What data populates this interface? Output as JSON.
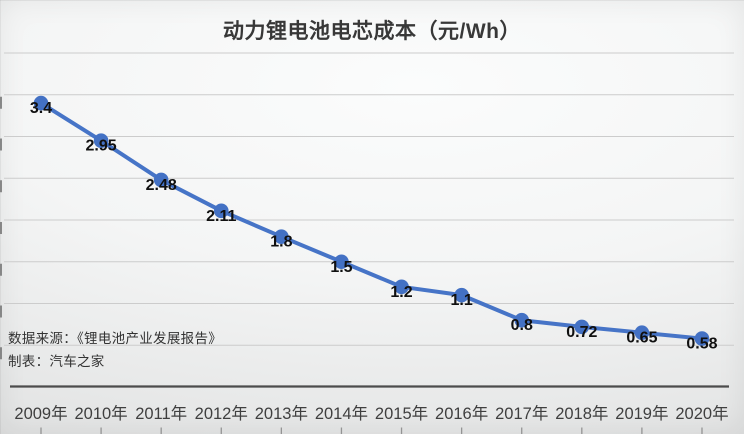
{
  "title": "动力锂电池电芯成本（元/Wh）",
  "source": {
    "line1": "数据来源：《锂电池产业发展报告》",
    "line2": "制表：汽车之家"
  },
  "chart_data": {
    "type": "line",
    "title": "动力锂电池电芯成本（元/Wh）",
    "categories": [
      "2009年",
      "2010年",
      "2011年",
      "2012年",
      "2013年",
      "2014年",
      "2015年",
      "2016年",
      "2017年",
      "2018年",
      "2019年",
      "2020年"
    ],
    "values": [
      3.4,
      2.95,
      2.48,
      2.11,
      1.8,
      1.5,
      1.2,
      1.1,
      0.8,
      0.72,
      0.65,
      0.58
    ],
    "labels": [
      "3.4",
      "2.95",
      "2.48",
      "2.11",
      "1.8",
      "1.5",
      "1.2",
      "1.1",
      "0.8",
      "0.72",
      "0.65",
      "0.58"
    ],
    "xlabel": "",
    "ylabel": "",
    "ylim": [
      0,
      4
    ],
    "grid_step": 0.5,
    "grid": true,
    "legend": false,
    "line_color": "#4674c7",
    "marker_color": "#4371c4",
    "data_label_color": "#101010",
    "gridline_color": "#cccccc",
    "axis_line_color": "#4c4c4c"
  }
}
